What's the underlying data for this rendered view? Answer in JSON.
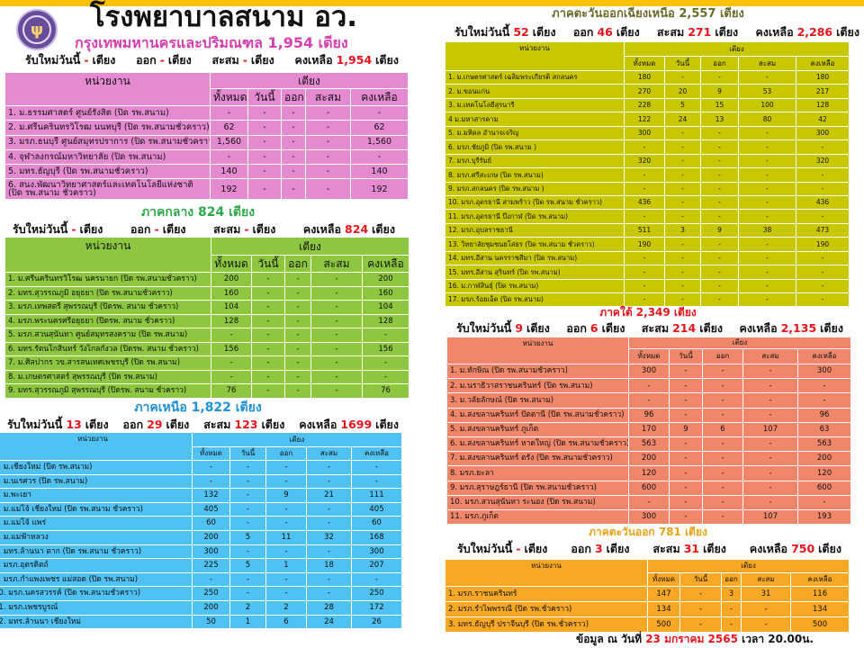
{
  "header": {
    "title": "โรงพยาบาลสนาม อว.",
    "logo_text": "อว"
  },
  "labels": {
    "new_today": "รับใหม่วันนี้",
    "out": "ออก",
    "cumulative": "สะสม",
    "remaining": "คงเหลือ",
    "beds_unit": "เตียง",
    "col_unit": "หน่วยงาน",
    "col_beds": "เตียง",
    "col_total": "ทั้งหมด",
    "col_today": "วันนี้",
    "col_out": "ออก",
    "col_cum": "สะสม",
    "col_remain": "คงเหลือ"
  },
  "colors": {
    "accent_value": "#e8141c",
    "topbar": "#ffc000"
  },
  "regions": [
    {
      "id": "bangkok",
      "title": "กรุงเทพมหานครและปริมณฑล  1,954 เตียง",
      "title_color": "#d63fb0",
      "table_color": "#e58ad1",
      "summary": {
        "new": "-",
        "out": "-",
        "cum": "-",
        "remain": "1,954"
      },
      "rows": [
        [
          "1. ม.ธรรมศาสตร์ ศูนย์รังสิต (ปิด รพ.สนาม)",
          "-",
          "-",
          "-",
          "-",
          "-"
        ],
        [
          "2. ม.ศรีนครินทรวิโรฒ นนทบุรี (ปิด รพ.สนามชั่วคราว)",
          "62",
          "-",
          "-",
          "-",
          "62"
        ],
        [
          "3. มรภ.ธนบุรี ศูนย์สมุทรปราการ (ปิด รพ.สนามชั่วคราว)",
          "1,560",
          "-",
          "-",
          "-",
          "1,560"
        ],
        [
          "4. จุฬาลงกรณ์มหาวิทยาลัย  (ปิด รพ.สนาม)",
          "-",
          "-",
          "-",
          "-",
          "-"
        ],
        [
          "5. มทร.ธัญบุรี (ปิด รพ.สนามชั่วคราว)",
          "140",
          "-",
          "-",
          "-",
          "140"
        ],
        [
          "6. สนง.พัฒนาวิทยาศาสตร์และเทคโนโลยีแห่งชาติ (ปิด รพ.สนาม ชั่วคราว)",
          "192",
          "-",
          "-",
          "-",
          "192"
        ]
      ]
    },
    {
      "id": "central",
      "title": "ภาคกลาง  824 เตียง",
      "title_color": "#2ea84a",
      "table_color": "#8dc63f",
      "summary": {
        "new": "-",
        "out": "-",
        "cum": "-",
        "remain": "824"
      },
      "rows": [
        [
          "1. ม.ศรีนครินทรวิโรฒ นครนายก  (ปิด รพ.สนามชั่วคราว)",
          "200",
          "-",
          "-",
          "-",
          "200"
        ],
        [
          "2. มทร.สุวรรณภูมิ อยุธยา  (ปิด รพ.สนามชั่วคราว)",
          "160",
          "-",
          "-",
          "-",
          "160"
        ],
        [
          "3. มรภ.เทพสตรี สุพรรณบุรี (ปิดรพ. สนาม ชั่วคราว)",
          "104",
          "-",
          "-",
          "-",
          "104"
        ],
        [
          "4. มรภ.พระนครศรีอยุธยา  (ปิดรพ. สนาม ชั่วคราว)",
          "128",
          "-",
          "-",
          "-",
          "128"
        ],
        [
          "5. มรภ.สวนสุนันทา ศูนย์สมุทรสงคราม  (ปิด รพ.สนาม)",
          "-",
          "-",
          "-",
          "-",
          "-"
        ],
        [
          "6. มทร.รัตนโกสินทร์ วังไกลกังวล (ปิดรพ. สนาม ชั่วคราว)",
          "156",
          "-",
          "-",
          "-",
          "156"
        ],
        [
          "7. ม.ศิลปากร วข.สารสนเทศเพชรบุรี  (ปิด รพ.สนาม)",
          "-",
          "-",
          "-",
          "-",
          "-"
        ],
        [
          "8. ม.เกษตรศาสตร์  สุพรรณบุรี  (ปิด รพ.สนาม)",
          "-",
          "-",
          "-",
          "-",
          "-"
        ],
        [
          "9. มทร.สุวรรณภูมิ  สุพรรณบุรี  (ปิดรพ. สนาม ชั่วคราว)",
          "76",
          "-",
          "-",
          "-",
          "76"
        ]
      ]
    },
    {
      "id": "north",
      "title": "ภาคเหนือ  1,822 เตียง",
      "title_color": "#1e90d6",
      "table_color": "#4fc1f2",
      "summary": {
        "new": "13",
        "out": "29",
        "cum": "123",
        "remain": "1699"
      },
      "rows": [
        [
          "1. ม.เชียงใหม่  (ปิด รพ.สนาม)",
          "-",
          "-",
          "-",
          "-",
          "-"
        ],
        [
          "2. ม.นเรศวร (ปิด รพ.สนาม)",
          "-",
          "-",
          "-",
          "-",
          "-"
        ],
        [
          "3. ม.พะเยา",
          "132",
          "-",
          "9",
          "21",
          "111"
        ],
        [
          "4. ม.แม่โจ้ เชียงใหม่ (ปิด รพ.สนาม ชั่วคราว)",
          "405",
          "-",
          "-",
          "-",
          "405"
        ],
        [
          "5. ม.แม่โจ้ แพร่",
          "60",
          "-",
          "-",
          "-",
          "60"
        ],
        [
          "6. ม.แม่ฟ้าหลวง",
          "200",
          "5",
          "11",
          "32",
          "168"
        ],
        [
          "7. มทร.ล้านนา ตาก  (ปิด รพ.สนาม ชั่วคราว)",
          "300",
          "-",
          "-",
          "-",
          "300"
        ],
        [
          "8. มรภ.อุตรดิตถ์",
          "225",
          "5",
          "1",
          "18",
          "207"
        ],
        [
          "9. มรภ.กำแพงเพชร แม่สอด  (ปิด รพ.สนาม)",
          "-",
          "-",
          "-",
          "-",
          "-"
        ],
        [
          "10. มรภ.นครสวรรค์ (ปิด รพ.สนามชั่วคราว)",
          "250",
          "-",
          "-",
          "-",
          "250"
        ],
        [
          "11. มรภ.เพชรบูรณ์",
          "200",
          "2",
          "2",
          "28",
          "172"
        ],
        [
          "12. มทร.ล้านนา เชียงใหม่",
          "50",
          "1",
          "6",
          "24",
          "26"
        ]
      ]
    },
    {
      "id": "northeast",
      "title": "ภาคตะวันออกเฉียงเหนือ  2,557 เตียง",
      "title_color": "#6b6b2a",
      "table_color": "#c9c800",
      "summary": {
        "new": "52",
        "out": "46",
        "cum": "271",
        "remain": "2,286"
      },
      "rows": [
        [
          "1. ม.เกษตรศาสตร์ เฉลิมพระเกียรติ สกลนคร",
          "180",
          "-",
          "-",
          "-",
          "180"
        ],
        [
          "2. ม.ขอนแก่น",
          "270",
          "20",
          "9",
          "53",
          "217"
        ],
        [
          "3. ม.เทคโนโลยีสุรนารี",
          "228",
          "5",
          "15",
          "100",
          "128"
        ],
        [
          "4 ม.มหาสารคาม",
          "122",
          "24",
          "13",
          "80",
          "42"
        ],
        [
          "5. ม.มหิดล อำนาจเจริญ",
          "300",
          "-",
          "-",
          "-",
          "300"
        ],
        [
          "6. มรภ.ชัยภูมิ   (ปิด รพ.สนาม )",
          "-",
          "-",
          "-",
          "-",
          "-"
        ],
        [
          "7. มรภ.บุรีรัมย์",
          "320",
          "-",
          "-",
          "-",
          "320"
        ],
        [
          "8. มรภ.ศรีสะเกษ  (ปิด รพ.สนาม)",
          "-",
          "-",
          "-",
          "-",
          "-"
        ],
        [
          "9. มรภ.สกลนคร  (ปิด รพ.สนาม )",
          "-",
          "-",
          "-",
          "-",
          "-"
        ],
        [
          "10. มรภ.อุดรธานี  สามพร้าว (ปิด รพ.สนาม ชั่วคราว)",
          "436",
          "-",
          "-",
          "-",
          "436"
        ],
        [
          "11. มรภ.อุดรธานี  บึงกาฬ  (ปิด รพ.สนาม)",
          "-",
          "-",
          "-",
          "-",
          "-"
        ],
        [
          "12. มรภ.อุบลราชธานี",
          "511",
          "3",
          "9",
          "38",
          "473"
        ],
        [
          "13. วิทยาลัยชุมชนยโสธร  (ปิด รพ.สนาม ชั่วคราว)",
          "190",
          "-",
          "-",
          "-",
          "190"
        ],
        [
          "14. มทร.อีสาน  นครราชสีมา  (ปิด รพ.สนาม)",
          "-",
          "-",
          "-",
          "-",
          "-"
        ],
        [
          "15. มทร.อีสาน  สุรินทร์  (ปิด รพ.สนาม)",
          "-",
          "-",
          "-",
          "-",
          "-"
        ],
        [
          "16. ม.กาฬสินธุ์  (ปิด รพ.สนาม)",
          "-",
          "-",
          "-",
          "-",
          "-"
        ],
        [
          "17. มรภ.ร้อยเอ็ด  (ปิด รพ.สนาม)",
          "-",
          "-",
          "-",
          "-",
          "-"
        ]
      ]
    },
    {
      "id": "south",
      "title": "ภาคใต้ 2,349 เตียง",
      "title_color": "#e8141c",
      "table_color": "#f0876a",
      "summary": {
        "new": "9",
        "out": "6",
        "cum": "214",
        "remain": "2,135"
      },
      "rows": [
        [
          "1. ม.ทักษิณ (ปิด รพ.สนามชั่วคราว)",
          "300",
          "-",
          "-",
          "-",
          "300"
        ],
        [
          "2. ม.นราธิวาสราชนครินทร์ (ปิด รพ.สนาม)",
          "-",
          "-",
          "-",
          "-",
          "-"
        ],
        [
          "3. ม.วลัยลักษณ์ (ปิด รพ.สนาม)",
          "-",
          "-",
          "-",
          "-",
          "-"
        ],
        [
          "4. ม.สงขลานครินทร์ ปัตตานี (ปิด รพ.สนามชั่วคราว)",
          "96",
          "-",
          "-",
          "-",
          "96"
        ],
        [
          "5. ม.สงขลานครินทร์ ภูเก็ต",
          "170",
          "9",
          "6",
          "107",
          "63"
        ],
        [
          "6. ม.สงขลานครินทร์ หาดใหญ่ (ปิด รพ.สนามชั่วคราว)",
          "563",
          "-",
          "-",
          "-",
          "563"
        ],
        [
          "7. ม.สงขลานครินทร์ ตรัง  (ปิด รพ.สนามชั่วคราว)",
          "200",
          "-",
          "-",
          "-",
          "200"
        ],
        [
          "8. มรภ.ยะลา",
          "120",
          "-",
          "-",
          "-",
          "120"
        ],
        [
          "9. มรภ.สุราษฎร์ธานี  (ปิด รพ.สนามชั่วคราว)",
          "600",
          "-",
          "-",
          "-",
          "600"
        ],
        [
          "10.  มรภ.สวนสุนันทา ระนอง (ปิด รพ.สนาม)",
          "-",
          "-",
          "-",
          "-",
          "-"
        ],
        [
          "11. มรภ.ภูเก็ต",
          "300",
          "-",
          "-",
          "107",
          "193"
        ]
      ]
    },
    {
      "id": "east",
      "title": "ภาคตะวันออก  781  เตียง",
      "title_color": "#e8a317",
      "table_color": "#f8a824",
      "summary": {
        "new": "-",
        "out": "3",
        "cum": "31",
        "remain": "750"
      },
      "rows": [
        [
          "1. มรภ.ราชนครินทร์",
          "147",
          "-",
          "3",
          "31",
          "116"
        ],
        [
          "2. มรภ.รำไพพรรณี (ปิด รพ.ชั่วคราว)",
          "134",
          "-",
          "-",
          "-",
          "134"
        ],
        [
          "3. มทร.ธัญบุรี  ปราจีนบุรี  (ปิด รพ.ชั่วคราว)",
          "500",
          "-",
          "-",
          "-",
          "500"
        ]
      ]
    }
  ],
  "footer": {
    "prefix": "ข้อมูล ณ วันที่",
    "date": "23  มกราคม 2565",
    "suffix": "เวลา 20.00น."
  }
}
